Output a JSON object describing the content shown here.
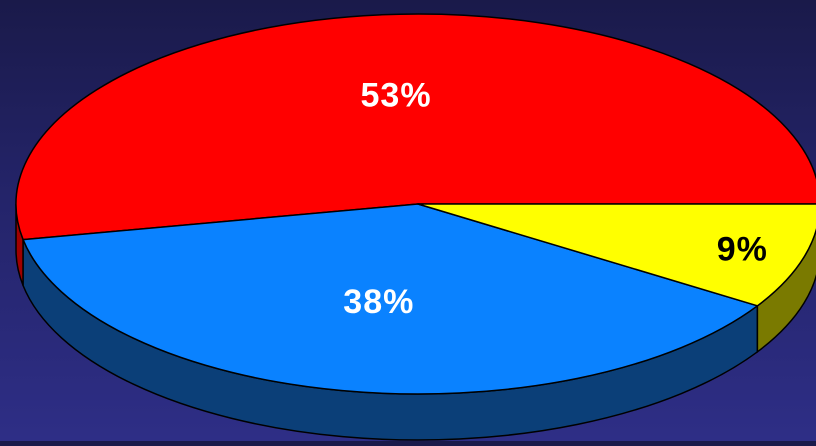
{
  "chart_data": {
    "type": "pie",
    "style": "3d",
    "categories": [
      "",
      "",
      ""
    ],
    "values": [
      53,
      38,
      9
    ],
    "labels": [
      "53%",
      "38%",
      "9%"
    ],
    "colors": {
      "top": [
        "#ff0000",
        "#0a82ff",
        "#ffff00"
      ],
      "side": [
        "#a00000",
        "#0b3f78",
        "#7a7a00"
      ],
      "label": [
        "#ffffff",
        "#ffffff",
        "#000000"
      ]
    },
    "title": "",
    "legend": "none"
  }
}
